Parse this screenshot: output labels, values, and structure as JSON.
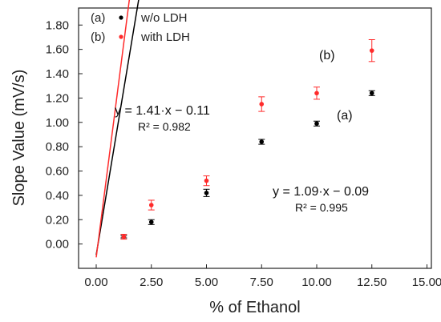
{
  "chart_data": {
    "type": "scatter",
    "xlabel": "% of Ethanol",
    "ylabel": "Slope  Value (mV/s)",
    "xlim": [
      -0.8,
      15.2
    ],
    "ylim": [
      -0.2,
      1.94
    ],
    "xticks": [
      0,
      2.5,
      5,
      7.5,
      10,
      12.5,
      15
    ],
    "xtick_labels": [
      "0.00",
      "2.50",
      "5.00",
      "7.50",
      "10.00",
      "12.50",
      "15.00"
    ],
    "yticks": [
      0,
      0.2,
      0.4,
      0.6,
      0.8,
      1.0,
      1.2,
      1.4,
      1.6,
      1.8
    ],
    "ytick_labels": [
      "0.00",
      "0.20",
      "0.40",
      "0.60",
      "0.80",
      "1.00",
      "1.20",
      "1.40",
      "1.60",
      "1.80"
    ],
    "grid": false,
    "legend_position": "top-left",
    "series": [
      {
        "name": "w/o LDH",
        "legend_tag": "(a)",
        "plot_tag": "(a)",
        "color": "#000000",
        "x": [
          1.25,
          2.5,
          5.0,
          7.5,
          10.0,
          12.5
        ],
        "y": [
          0.06,
          0.18,
          0.42,
          0.84,
          0.99,
          1.24
        ],
        "err": [
          0.01,
          0.02,
          0.03,
          0.02,
          0.02,
          0.02
        ],
        "fit": {
          "slope": 1.09,
          "intercept": -0.09,
          "x_range": [
            0,
            13.9
          ]
        },
        "equation": "y = 1.09·x − 0.09",
        "r2": "R² = 0.995"
      },
      {
        "name": "with LDH",
        "legend_tag": "(b)",
        "plot_tag": "(b)",
        "color": "#ff2b2b",
        "x": [
          1.25,
          2.5,
          5.0,
          7.5,
          10.0,
          12.5
        ],
        "y": [
          0.06,
          0.32,
          0.52,
          1.15,
          1.24,
          1.59
        ],
        "err": [
          0.02,
          0.04,
          0.04,
          0.06,
          0.05,
          0.09
        ],
        "fit": {
          "slope": 1.41,
          "intercept": -0.11,
          "x_range": [
            0,
            13.9
          ]
        },
        "equation": "y = 1.41·x − 0.11",
        "r2": "R² = 0.982"
      }
    ]
  }
}
